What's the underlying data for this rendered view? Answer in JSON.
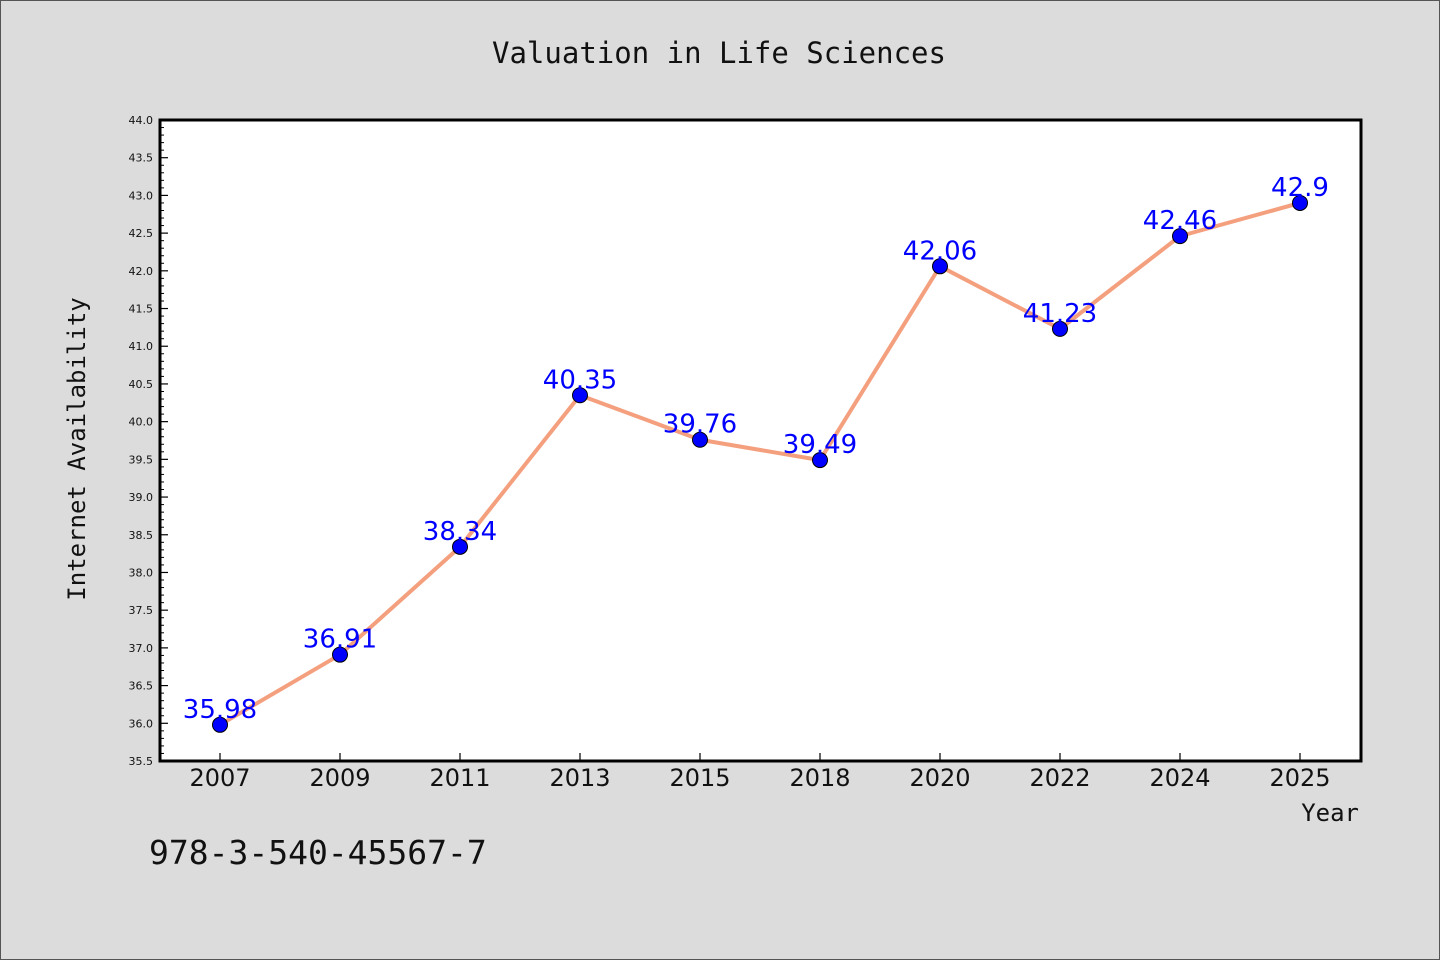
{
  "chart_data": {
    "type": "line",
    "title": "Valuation in Life Sciences",
    "xlabel": "Year",
    "ylabel": "Internet Availability",
    "categories": [
      "2007",
      "2009",
      "2011",
      "2013",
      "2015",
      "2018",
      "2020",
      "2022",
      "2024",
      "2025"
    ],
    "values": [
      35.98,
      36.91,
      38.34,
      40.35,
      39.76,
      39.49,
      42.06,
      41.23,
      42.46,
      42.9
    ],
    "ylim": [
      35.5,
      44.0
    ],
    "yticks": [
      "35.5",
      "36.0",
      "36.5",
      "37.0",
      "37.5",
      "38.0",
      "38.5",
      "39.0",
      "39.5",
      "40.0",
      "40.5",
      "41.0",
      "41.5",
      "42.0",
      "42.5",
      "43.0",
      "43.5",
      "44.0"
    ],
    "grid": false,
    "legend": "none",
    "line_color": "#f4a07e",
    "marker_color": "#0000ff",
    "label_color": "#0000ff"
  },
  "annotation": {
    "isbn": "978-3-540-45567-7"
  }
}
